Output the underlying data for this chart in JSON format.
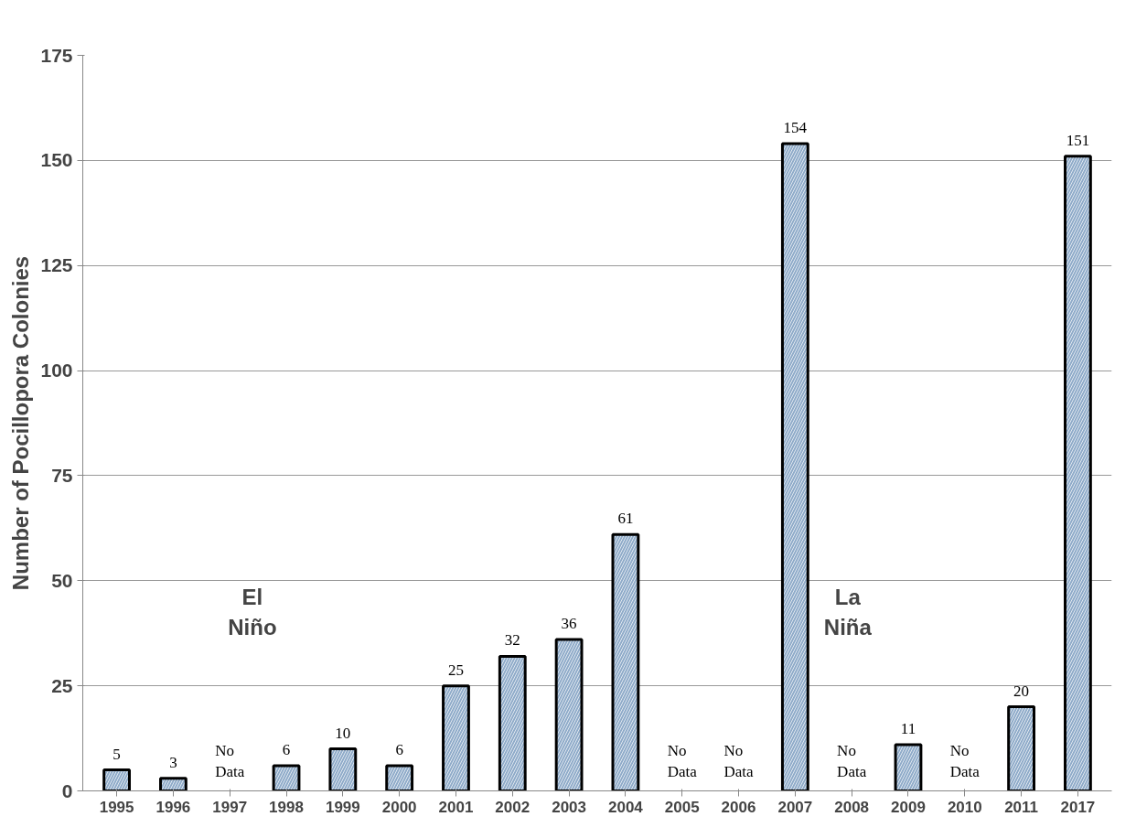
{
  "chart_data": {
    "type": "bar",
    "ylabel": "Number of Pocillopora Colonies",
    "categories": [
      "1995",
      "1996",
      "1997",
      "1998",
      "1999",
      "2000",
      "2001",
      "2002",
      "2003",
      "2004",
      "2005",
      "2006",
      "2007",
      "2008",
      "2009",
      "2010",
      "2011",
      "2017"
    ],
    "values": [
      5,
      3,
      null,
      6,
      10,
      6,
      25,
      32,
      36,
      61,
      null,
      null,
      154,
      null,
      11,
      null,
      20,
      151
    ],
    "value_labels": [
      "5",
      "3",
      "No Data",
      "6",
      "10",
      "6",
      "25",
      "32",
      "36",
      "61",
      "No Data",
      "No Data",
      "154",
      "No Data",
      "11",
      "No Data",
      "20",
      "151"
    ],
    "color": "#8fabc9",
    "ylim": [
      0,
      175
    ],
    "yticks": [
      0,
      25,
      50,
      75,
      100,
      125,
      150,
      175
    ],
    "grid": "y",
    "annotations": [
      "El Niño",
      "La Niña"
    ]
  }
}
